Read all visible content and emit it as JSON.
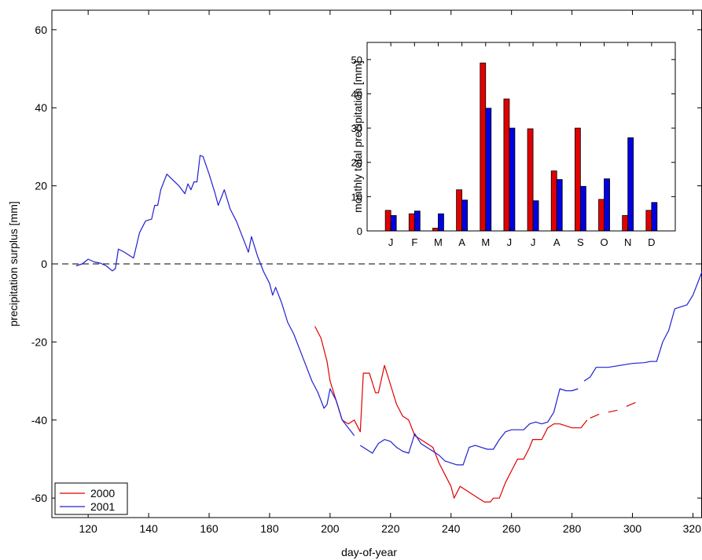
{
  "chart_data": [
    {
      "type": "line",
      "title": "",
      "xlabel": "day-of-year",
      "ylabel": "precipitation surplus [mm]",
      "xlim": [
        108,
        323
      ],
      "ylim": [
        -65,
        65
      ],
      "xticks": [
        120,
        140,
        160,
        180,
        200,
        220,
        240,
        260,
        280,
        300,
        320
      ],
      "yticks": [
        60,
        40,
        20,
        0,
        -20,
        -40,
        -60
      ],
      "zero_line": "dashed",
      "legend": {
        "position": "bottom-left",
        "entries": [
          "2000",
          "2001"
        ]
      },
      "series": [
        {
          "name": "2000",
          "color": "#e00000",
          "segments": [
            [
              [
                195,
                -16
              ],
              [
                197,
                -19
              ],
              [
                199,
                -25
              ],
              [
                200,
                -30
              ],
              [
                202,
                -35
              ],
              [
                204,
                -40
              ],
              [
                206,
                -41
              ],
              [
                208,
                -40
              ],
              [
                210,
                -43
              ],
              [
                211,
                -28
              ],
              [
                213,
                -28
              ],
              [
                215,
                -33
              ],
              [
                216,
                -33
              ],
              [
                218,
                -26
              ],
              [
                220,
                -31
              ],
              [
                222,
                -36
              ],
              [
                224,
                -39
              ],
              [
                226,
                -40
              ],
              [
                228,
                -44
              ],
              [
                230,
                -45
              ],
              [
                232,
                -46
              ],
              [
                234,
                -47
              ],
              [
                236,
                -51
              ],
              [
                238,
                -54
              ],
              [
                240,
                -57
              ],
              [
                241,
                -60
              ],
              [
                243,
                -57
              ],
              [
                245,
                -58
              ],
              [
                247,
                -59
              ],
              [
                249,
                -60
              ],
              [
                251,
                -61
              ],
              [
                253,
                -61
              ],
              [
                254,
                -60
              ],
              [
                256,
                -60
              ],
              [
                258,
                -56
              ],
              [
                260,
                -53
              ],
              [
                262,
                -50
              ],
              [
                264,
                -50
              ],
              [
                266,
                -47
              ],
              [
                267,
                -45
              ],
              [
                270,
                -45
              ],
              [
                272,
                -42
              ],
              [
                274,
                -41
              ],
              [
                276,
                -41
              ],
              [
                280,
                -42
              ],
              [
                283,
                -42
              ],
              [
                285,
                -40
              ]
            ],
            [
              [
                286,
                -39.5
              ],
              [
                289,
                -38.5
              ]
            ],
            [
              [
                292,
                -38
              ],
              [
                295,
                -37.5
              ]
            ],
            [
              [
                298,
                -36.5
              ],
              [
                301,
                -35.5
              ]
            ]
          ]
        },
        {
          "name": "2001",
          "color": "#2020d0",
          "segments": [
            [
              [
                116,
                -0.5
              ],
              [
                118,
                0
              ],
              [
                120,
                1.2
              ],
              [
                122,
                0.5
              ],
              [
                124,
                0.2
              ],
              [
                126,
                -0.5
              ],
              [
                128,
                -1.8
              ],
              [
                129,
                -1.2
              ],
              [
                130,
                3.8
              ],
              [
                132,
                3
              ],
              [
                134,
                2
              ],
              [
                135,
                1.5
              ],
              [
                137,
                8
              ],
              [
                139,
                11
              ],
              [
                141,
                11.5
              ],
              [
                142,
                15
              ],
              [
                143,
                15
              ],
              [
                144,
                19
              ],
              [
                146,
                23
              ],
              [
                148,
                21.5
              ],
              [
                150,
                20
              ],
              [
                152,
                18
              ],
              [
                153,
                20.5
              ],
              [
                154,
                19
              ],
              [
                155,
                21
              ],
              [
                156,
                21
              ],
              [
                157,
                27.8
              ],
              [
                158,
                27.5
              ],
              [
                160,
                23
              ],
              [
                162,
                18
              ],
              [
                163,
                15
              ],
              [
                165,
                19
              ],
              [
                167,
                14
              ],
              [
                169,
                11
              ],
              [
                171,
                7
              ],
              [
                172,
                5
              ],
              [
                173,
                3
              ],
              [
                174,
                7
              ],
              [
                176,
                2
              ],
              [
                178,
                -2
              ],
              [
                180,
                -5
              ],
              [
                181,
                -8
              ],
              [
                182,
                -6
              ],
              [
                184,
                -10
              ],
              [
                186,
                -15
              ],
              [
                188,
                -18
              ],
              [
                190,
                -22
              ],
              [
                192,
                -26
              ],
              [
                194,
                -30
              ],
              [
                196,
                -33
              ],
              [
                198,
                -37
              ],
              [
                199,
                -36
              ],
              [
                200,
                -32
              ],
              [
                202,
                -35
              ],
              [
                204,
                -40
              ],
              [
                206,
                -42
              ],
              [
                208,
                -44
              ]
            ],
            [
              [
                210,
                -46.5
              ],
              [
                212,
                -47.5
              ],
              [
                214,
                -48.5
              ],
              [
                216,
                -46
              ],
              [
                218,
                -45
              ],
              [
                220,
                -45.5
              ],
              [
                222,
                -47
              ],
              [
                224,
                -48
              ],
              [
                226,
                -48.5
              ],
              [
                228,
                -43.5
              ],
              [
                230,
                -46
              ],
              [
                232,
                -47
              ],
              [
                234,
                -48
              ],
              [
                236,
                -49
              ],
              [
                238,
                -50.5
              ],
              [
                240,
                -51
              ],
              [
                242,
                -51.5
              ],
              [
                244,
                -51.5
              ],
              [
                246,
                -47
              ],
              [
                248,
                -46.5
              ],
              [
                250,
                -47
              ],
              [
                252,
                -47.5
              ],
              [
                254,
                -47.5
              ],
              [
                256,
                -45
              ],
              [
                258,
                -43
              ],
              [
                260,
                -42.5
              ],
              [
                262,
                -42.5
              ],
              [
                264,
                -42.5
              ],
              [
                266,
                -41
              ],
              [
                268,
                -40.5
              ],
              [
                270,
                -41
              ],
              [
                272,
                -40.5
              ],
              [
                274,
                -38
              ],
              [
                276,
                -32
              ],
              [
                278,
                -32.5
              ],
              [
                280,
                -32.5
              ],
              [
                282,
                -32
              ]
            ],
            [
              [
                284,
                -30
              ],
              [
                286,
                -29
              ],
              [
                288,
                -26.5
              ],
              [
                292,
                -26.5
              ],
              [
                296,
                -26
              ],
              [
                300,
                -25.5
              ],
              [
                304,
                -25.3
              ],
              [
                306,
                -25
              ],
              [
                308,
                -25
              ],
              [
                310,
                -20
              ],
              [
                312,
                -17
              ],
              [
                314,
                -11.5
              ],
              [
                316,
                -11
              ],
              [
                318,
                -10.5
              ],
              [
                320,
                -8
              ],
              [
                322,
                -4
              ],
              [
                323,
                -2
              ]
            ]
          ]
        }
      ]
    },
    {
      "type": "bar",
      "title": "",
      "xlabel": "",
      "ylabel": "monthly total precipitation [mm]",
      "ylim": [
        0,
        55
      ],
      "yticks": [
        0,
        10,
        20,
        30,
        40,
        50
      ],
      "categories": [
        "J",
        "F",
        "M",
        "A",
        "M",
        "J",
        "J",
        "A",
        "S",
        "O",
        "N",
        "D"
      ],
      "series": [
        {
          "name": "2000",
          "color": "#e00000",
          "values": [
            6,
            5,
            0.8,
            12,
            49,
            38.5,
            29.8,
            17.5,
            30,
            9.2,
            4.5,
            6
          ]
        },
        {
          "name": "2001",
          "color": "#0000e0",
          "values": [
            4.5,
            5.8,
            5,
            9,
            35.8,
            30,
            8.8,
            15,
            13,
            15.2,
            27.2,
            8.3
          ]
        }
      ]
    }
  ]
}
